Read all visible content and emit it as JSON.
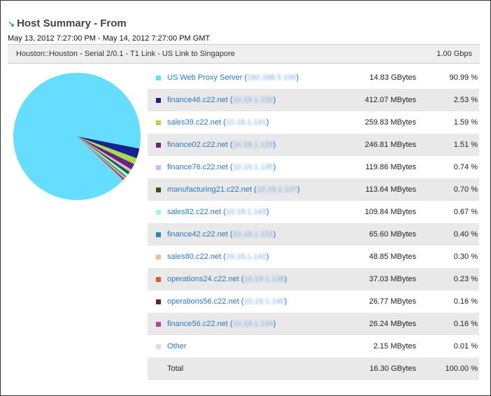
{
  "header": {
    "title": "Host Summary - From",
    "icon": "arrow-down-right-icon",
    "range": "May 13, 2012 7:27:00 PM - May 14, 2012 7:27:00 PM GMT"
  },
  "link": {
    "name": "Houston::Houston - Serial 2/0.1 - T1 Link - US Link to Singapore",
    "speed": "1.00 Gbps"
  },
  "rows": [
    {
      "host": "US Web Proxy Server",
      "ip": "192.168.5.100",
      "bytes": "14.83 GBytes",
      "pct": "90.99 %",
      "value": 90.99,
      "color": "#66ddff"
    },
    {
      "host": "finance46.c22.net",
      "ip": "10.19.1.132",
      "bytes": "412.07 MBytes",
      "pct": "2.53 %",
      "value": 2.53,
      "color": "#14238f"
    },
    {
      "host": "sales39.c22.net",
      "ip": "10.19.1.141",
      "bytes": "259.83 MBytes",
      "pct": "1.59 %",
      "value": 1.59,
      "color": "#a8dc4a"
    },
    {
      "host": "finance02.c22.net",
      "ip": "10.19.1.129",
      "bytes": "246.81 MBytes",
      "pct": "1.51 %",
      "value": 1.51,
      "color": "#6a2378"
    },
    {
      "host": "finance76.c22.net",
      "ip": "10.19.1.135",
      "bytes": "119.86 MBytes",
      "pct": "0.74 %",
      "value": 0.74,
      "color": "#d6b4f6"
    },
    {
      "host": "manufacturing21.c22.net",
      "ip": "10.19.1.137",
      "bytes": "113.64 MBytes",
      "pct": "0.70 %",
      "value": 0.7,
      "color": "#2d5a1b"
    },
    {
      "host": "sales82.c22.net",
      "ip": "10.19.1.143",
      "bytes": "109.84 MBytes",
      "pct": "0.67 %",
      "value": 0.67,
      "color": "#99ffcc"
    },
    {
      "host": "finance42.c22.net",
      "ip": "10.19.1.131",
      "bytes": "65.60 MBytes",
      "pct": "0.40 %",
      "value": 0.4,
      "color": "#2288bb"
    },
    {
      "host": "sales80.c22.net",
      "ip": "10.19.1.142",
      "bytes": "48.85 MBytes",
      "pct": "0.30 %",
      "value": 0.3,
      "color": "#ffbb88"
    },
    {
      "host": "operations24.c22.net",
      "ip": "10.19.1.138",
      "bytes": "37.03 MBytes",
      "pct": "0.23 %",
      "value": 0.23,
      "color": "#e05533"
    },
    {
      "host": "operations56.c22.net",
      "ip": "10.19.1.140",
      "bytes": "26.77 MBytes",
      "pct": "0.16 %",
      "value": 0.16,
      "color": "#5a2a2a"
    },
    {
      "host": "finance56.c22.net",
      "ip": "10.19.1.134",
      "bytes": "26.24 MBytes",
      "pct": "0.16 %",
      "value": 0.16,
      "color": "#bb4499"
    },
    {
      "host": "Other",
      "ip": "",
      "bytes": "2.15 MBytes",
      "pct": "0.01 %",
      "value": 0.01,
      "color": "#dddddd"
    }
  ],
  "total": {
    "label": "Total",
    "bytes": "16.30 GBytes",
    "pct": "100.00 %"
  }
}
